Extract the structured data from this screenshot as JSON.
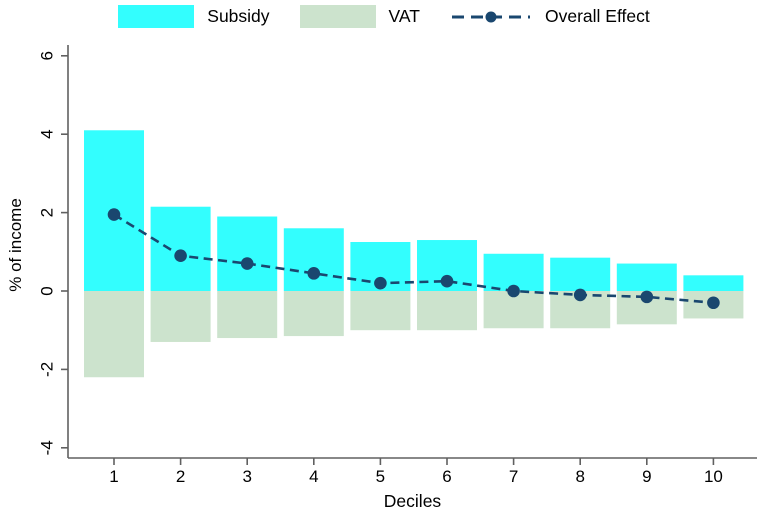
{
  "chart_data": {
    "type": "bar",
    "title": "",
    "xlabel": "Deciles",
    "ylabel": "% of income",
    "categories": [
      "1",
      "2",
      "3",
      "4",
      "5",
      "6",
      "7",
      "8",
      "9",
      "10"
    ],
    "series": [
      {
        "name": "Subsidy",
        "type": "bar",
        "color": "#33fefe",
        "values": [
          4.1,
          2.15,
          1.9,
          1.6,
          1.25,
          1.3,
          0.95,
          0.85,
          0.7,
          0.4
        ]
      },
      {
        "name": "VAT",
        "type": "bar",
        "color": "#cce3cd",
        "values": [
          -2.2,
          -1.3,
          -1.2,
          -1.15,
          -1.0,
          -1.0,
          -0.95,
          -0.95,
          -0.85,
          -0.7
        ]
      },
      {
        "name": "Overall Effect",
        "type": "line",
        "style": "dashed",
        "marker": "circle",
        "color": "#1a476f",
        "values": [
          1.95,
          0.9,
          0.7,
          0.45,
          0.2,
          0.25,
          0.0,
          -0.1,
          -0.15,
          -0.3
        ]
      }
    ],
    "ylim": [
      -4.3,
      6.3
    ],
    "yticks": [
      6,
      4,
      2,
      0,
      -2,
      -4
    ],
    "grid": false,
    "legend_position": "top-center",
    "axis_color": "#606060",
    "text_color": "#000000",
    "background_color": "#ffffff"
  }
}
